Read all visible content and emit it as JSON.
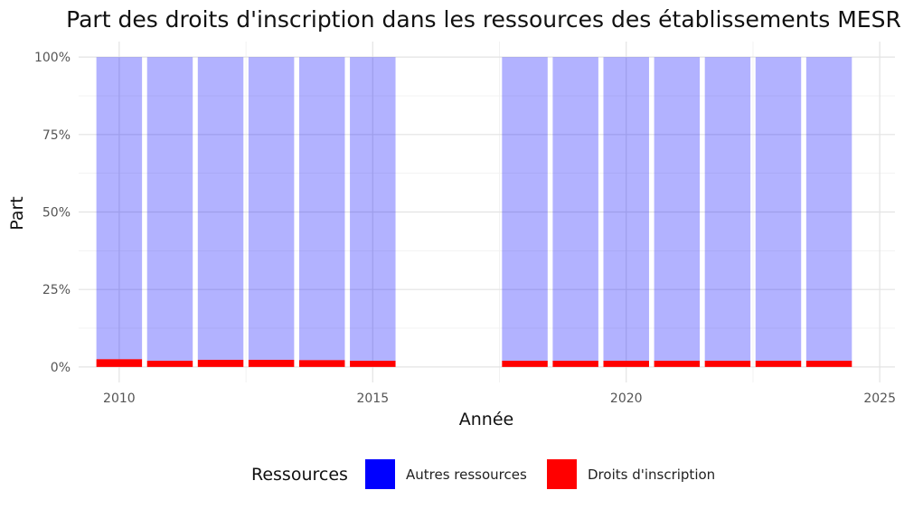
{
  "chart_data": {
    "type": "bar",
    "stacked": true,
    "title": "Part des droits d'inscription dans les ressources des établissements MESR",
    "xlabel": "Année",
    "ylabel": "Part",
    "x": [
      2010,
      2011,
      2012,
      2013,
      2014,
      2015,
      2018,
      2019,
      2020,
      2021,
      2022,
      2023,
      2024
    ],
    "series": [
      {
        "name": "Autres ressources",
        "color": "#0000ff",
        "opacity": 0.3,
        "values": [
          0.975,
          0.98,
          0.977,
          0.977,
          0.978,
          0.98,
          0.98,
          0.98,
          0.98,
          0.98,
          0.98,
          0.98,
          0.98
        ]
      },
      {
        "name": "Droits d'inscription",
        "color": "#ff0000",
        "opacity": 1,
        "values": [
          0.025,
          0.02,
          0.023,
          0.023,
          0.022,
          0.02,
          0.02,
          0.02,
          0.02,
          0.02,
          0.02,
          0.02,
          0.02
        ]
      }
    ],
    "xlim": [
      2009.2,
      2025.3
    ],
    "ylim": [
      -0.05,
      1.05
    ],
    "x_ticks": [
      2010,
      2015,
      2020,
      2025
    ],
    "y_ticks": [
      0,
      0.25,
      0.5,
      0.75,
      1.0
    ],
    "y_tick_labels": [
      "0%",
      "25%",
      "50%",
      "75%",
      "100%"
    ],
    "grid": true,
    "legend": {
      "title": "Ressources",
      "position": "bottom",
      "entries": [
        "Autres ressources",
        "Droits d'inscription"
      ]
    }
  }
}
